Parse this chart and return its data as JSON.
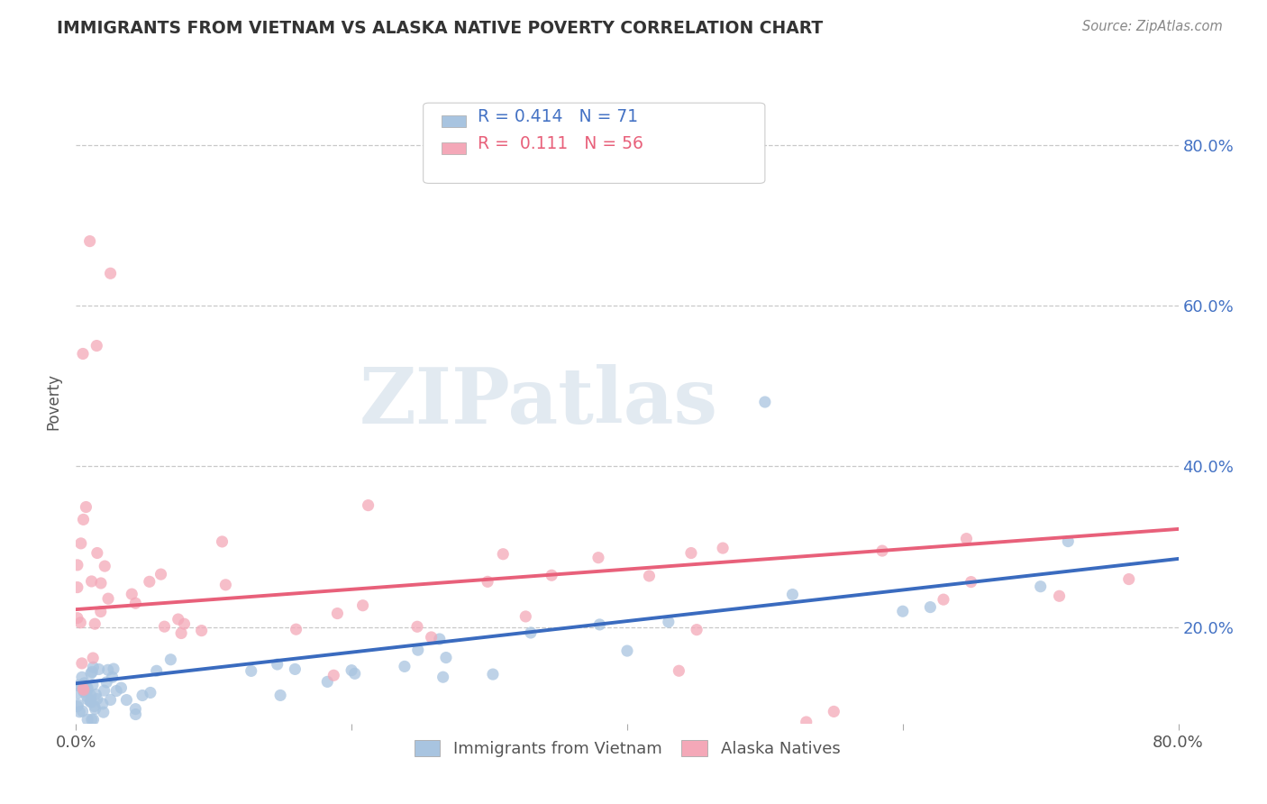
{
  "title": "IMMIGRANTS FROM VIETNAM VS ALASKA NATIVE POVERTY CORRELATION CHART",
  "source": "Source: ZipAtlas.com",
  "blue_label": "Immigrants from Vietnam",
  "pink_label": "Alaska Natives",
  "blue_R": 0.414,
  "blue_N": 71,
  "pink_R": 0.111,
  "pink_N": 56,
  "blue_color": "#a8c4e0",
  "pink_color": "#f4a8b8",
  "blue_line_color": "#3a6bbf",
  "pink_line_color": "#e8607a",
  "xlim": [
    0.0,
    0.8
  ],
  "ylim": [
    0.08,
    0.88
  ],
  "blue_trend_x0": 0.0,
  "blue_trend_y0": 0.13,
  "blue_trend_x1": 0.8,
  "blue_trend_y1": 0.285,
  "pink_trend_x0": 0.0,
  "pink_trend_y0": 0.222,
  "pink_trend_x1": 0.8,
  "pink_trend_y1": 0.322,
  "ytick_positions": [
    0.2,
    0.4,
    0.6,
    0.8
  ],
  "ytick_labels": [
    "20.0%",
    "40.0%",
    "60.0%",
    "80.0%"
  ],
  "background_color": "#ffffff",
  "grid_color": "#c8c8c8",
  "watermark_text": "ZIPatlas",
  "watermark_color": "#d0dce8"
}
